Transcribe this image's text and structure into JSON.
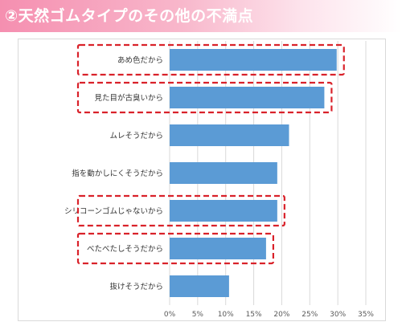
{
  "title": "②天然ゴムタイプのその他の不満点",
  "colors": {
    "bar": "#5b9bd5",
    "highlight": "#d9222a",
    "grid": "#d9d9d9",
    "banner": "#f58fb0"
  },
  "chart_data": {
    "type": "bar",
    "orientation": "horizontal",
    "categories": [
      "あめ色だから",
      "見た目が古臭いから",
      "ムレそうだから",
      "指を動かしにくそうだから",
      "シリコーンゴムじゃないから",
      "べたべたしそうだから",
      "抜けそうだから"
    ],
    "values": [
      29.8,
      27.6,
      21.3,
      19.2,
      19.2,
      17.2,
      10.6
    ],
    "highlighted": [
      true,
      true,
      false,
      false,
      true,
      true,
      false
    ],
    "x_ticks": [
      "0%",
      "5%",
      "10%",
      "15%",
      "20%",
      "25%",
      "30%",
      "35%"
    ],
    "xlim": [
      0,
      35
    ],
    "grid": true,
    "title": "②天然ゴムタイプのその他の不満点",
    "xlabel": "",
    "ylabel": ""
  }
}
